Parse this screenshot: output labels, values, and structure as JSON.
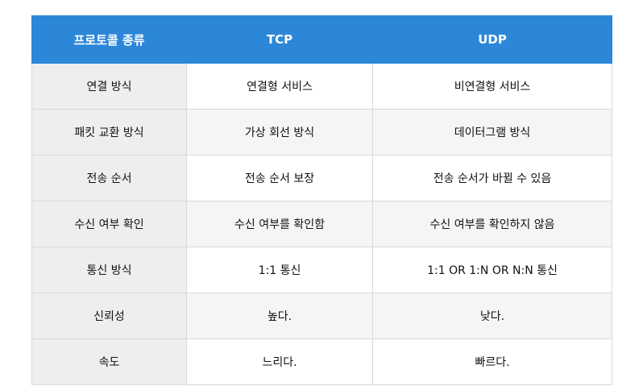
{
  "table": {
    "headers": [
      "프로토콜 종류",
      "TCP",
      "UDP"
    ],
    "rows": [
      [
        "연결 방식",
        "연결형 서비스",
        "비연결형 서비스"
      ],
      [
        "패킷 교환 방식",
        "가상 회선 방식",
        "데이터그램 방식"
      ],
      [
        "전송 순서",
        "전송 순서 보장",
        "전송 순서가 바뀔 수 있음"
      ],
      [
        "수신 여부 확인",
        "수신 여부를 확인함",
        "수신 여부를 확인하지 않음"
      ],
      [
        "통신 방식",
        "1:1 통신",
        "1:1 OR 1:N OR N:N 통신"
      ],
      [
        "신뢰성",
        "높다.",
        "낮다."
      ],
      [
        "속도",
        "느리다.",
        "빠르다."
      ]
    ]
  },
  "colors": {
    "header_bg": "#2d87d8",
    "header_text": "#ffffff",
    "label_bg": "#eeeeee",
    "border": "#d9d9d9"
  }
}
